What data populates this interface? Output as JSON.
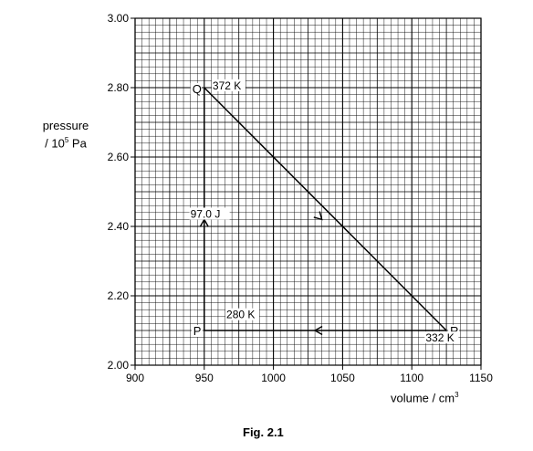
{
  "chart_data": {
    "type": "line",
    "caption": "Fig. 2.1",
    "xlabel_prefix": "volume / cm",
    "xlabel_sup": "3",
    "ylabel_line1": "pressure",
    "ylabel_line2_prefix": "/ 10",
    "ylabel_line2_sup": "5",
    "ylabel_line2_suffix": " Pa",
    "xlim": [
      900,
      1150
    ],
    "ylim": [
      2.0,
      3.0
    ],
    "x_ticks": [
      900,
      950,
      1000,
      1050,
      1100,
      1150
    ],
    "x_tick_labels": [
      "900",
      "950",
      "1000",
      "1050",
      "1100",
      "1150"
    ],
    "y_ticks": [
      2.0,
      2.2,
      2.4,
      2.6,
      2.8,
      3.0
    ],
    "y_tick_labels": [
      "2.00",
      "2.20",
      "2.40",
      "2.60",
      "2.80",
      "3.00"
    ],
    "grid": true,
    "points": [
      {
        "name": "P",
        "x": 950,
        "y": 2.1
      },
      {
        "name": "Q",
        "x": 950,
        "y": 2.8
      },
      {
        "name": "R",
        "x": 1125,
        "y": 2.1
      }
    ],
    "segments": [
      {
        "from": "P",
        "to": "Q",
        "arrow_at": [
          950,
          2.42
        ]
      },
      {
        "from": "Q",
        "to": "R",
        "arrow_at": [
          1035,
          2.42
        ]
      },
      {
        "from": "R",
        "to": "P",
        "arrow_at": [
          1030,
          2.1
        ]
      }
    ],
    "annotations": [
      {
        "text": "372 K",
        "x": 956,
        "y": 2.795
      },
      {
        "text": "97.0 J",
        "x": 940,
        "y": 2.425
      },
      {
        "text": "280 K",
        "x": 966,
        "y": 2.135
      },
      {
        "text": "332 K",
        "x": 1110,
        "y": 2.068
      }
    ]
  }
}
